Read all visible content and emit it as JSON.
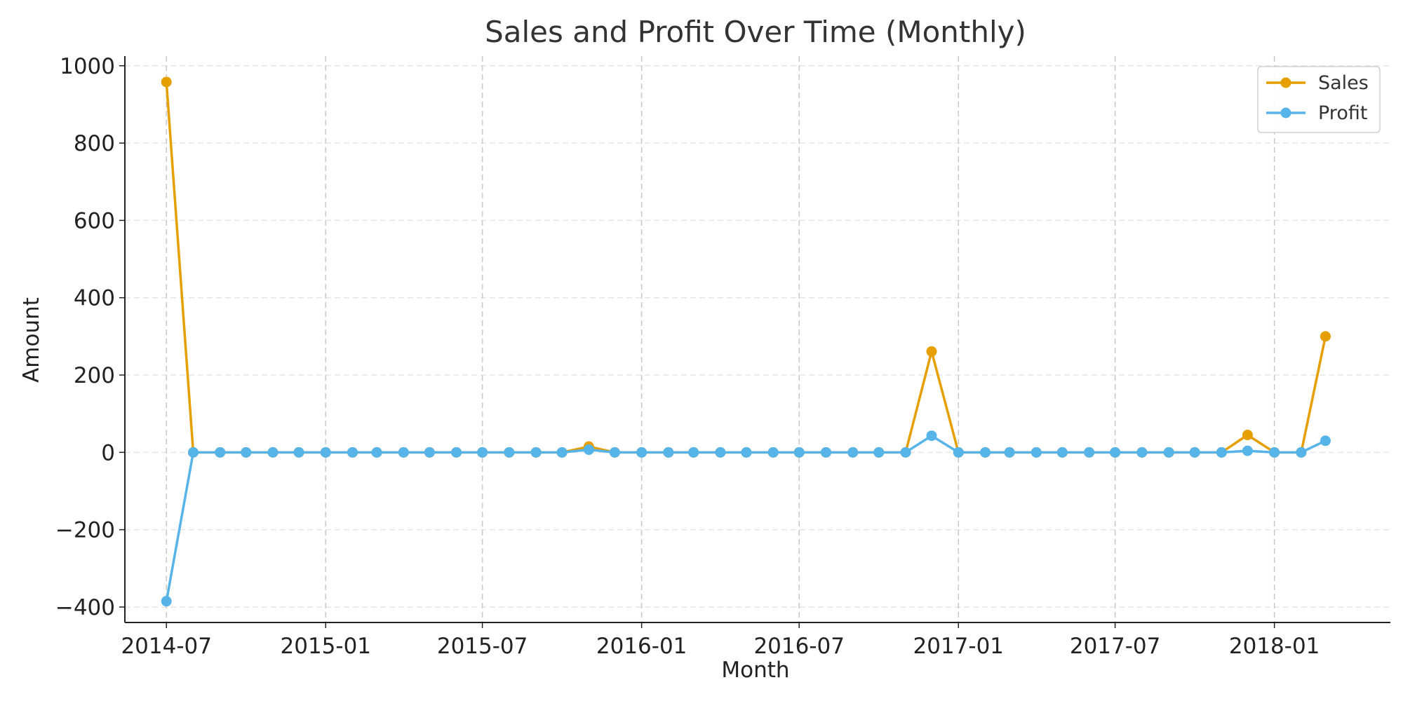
{
  "chart_data": {
    "type": "line",
    "title": "Sales and Profit Over Time (Monthly)",
    "xlabel": "Month",
    "ylabel": "Amount",
    "x": [
      "2014-07",
      "2014-08",
      "2014-09",
      "2014-10",
      "2014-11",
      "2014-12",
      "2015-01",
      "2015-02",
      "2015-03",
      "2015-04",
      "2015-05",
      "2015-06",
      "2015-07",
      "2015-08",
      "2015-09",
      "2015-10",
      "2015-11",
      "2015-12",
      "2016-01",
      "2016-02",
      "2016-03",
      "2016-04",
      "2016-05",
      "2016-06",
      "2016-07",
      "2016-08",
      "2016-09",
      "2016-10",
      "2016-11",
      "2016-12",
      "2017-01",
      "2017-02",
      "2017-03",
      "2017-04",
      "2017-05",
      "2017-06",
      "2017-07",
      "2017-08",
      "2017-09",
      "2017-10",
      "2017-11",
      "2017-12",
      "2018-01",
      "2018-02",
      "2018-03"
    ],
    "series": [
      {
        "name": "Sales",
        "color": "#E69F00",
        "values": [
          958,
          0,
          0,
          0,
          0,
          0,
          0,
          0,
          0,
          0,
          0,
          0,
          0,
          0,
          0,
          0,
          15,
          0,
          0,
          0,
          0,
          0,
          0,
          0,
          0,
          0,
          0,
          0,
          0,
          261,
          0,
          0,
          0,
          0,
          0,
          0,
          0,
          0,
          0,
          0,
          0,
          45,
          0,
          0,
          300
        ]
      },
      {
        "name": "Profit",
        "color": "#56B4E9",
        "values": [
          -385,
          0,
          0,
          0,
          0,
          0,
          0,
          0,
          0,
          0,
          0,
          0,
          0,
          0,
          0,
          0,
          7,
          0,
          0,
          0,
          0,
          0,
          0,
          0,
          0,
          0,
          0,
          0,
          0,
          43,
          0,
          0,
          0,
          0,
          0,
          0,
          0,
          0,
          0,
          0,
          0,
          4,
          0,
          0,
          30
        ]
      }
    ],
    "x_ticks": [
      "2014-07",
      "2015-01",
      "2015-07",
      "2016-01",
      "2016-07",
      "2017-01",
      "2017-07",
      "2018-01"
    ],
    "y_ticks": [
      -400,
      -200,
      0,
      200,
      400,
      600,
      800,
      1000
    ],
    "y_tick_labels": [
      "−400",
      "−200",
      "0",
      "200",
      "400",
      "600",
      "800",
      "1000"
    ],
    "ylim": [
      -440,
      1025
    ],
    "xlim": [
      "2014-05-14",
      "2018-05-15"
    ],
    "grid": {
      "x": true,
      "y": true
    },
    "legend_position": "top-right"
  }
}
